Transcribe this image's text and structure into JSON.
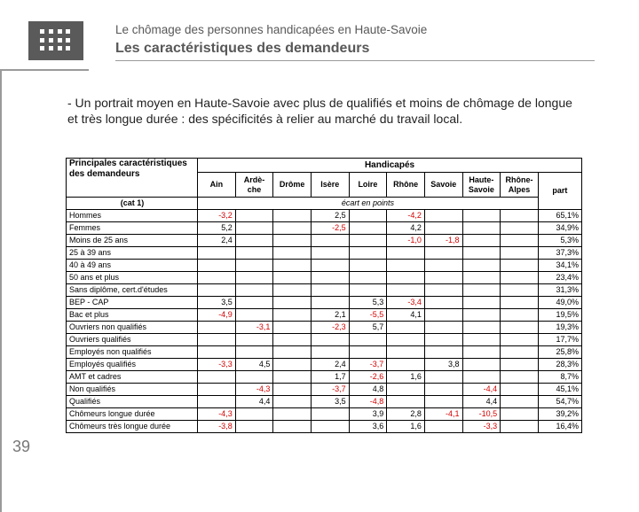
{
  "header": {
    "eyebrow": "Le chômage des personnes handicapées en Haute-Savoie",
    "title": "Les caractéristiques des demandeurs"
  },
  "page_number": "39",
  "body": "- Un portrait moyen en Haute-Savoie avec plus de qualifiés et moins de chômage de longue et très longue durée : des spécificités à relier au marché du travail local.",
  "table": {
    "super_header": "Handicapés",
    "left_header_l1": "Principales caractéristiques",
    "left_header_l2": "des demandeurs",
    "cols": [
      "Ain",
      "Ardè-\nche",
      "Drôme",
      "Isère",
      "Loire",
      "Rhône",
      "Savoie",
      "Haute-\nSavoie",
      "Rhône-\nAlpes"
    ],
    "cat_label": "(cat 1)",
    "ecarts_label": "écart en points",
    "part_label": "part",
    "rows": [
      {
        "label": "Hommes",
        "v": [
          "-3,2",
          "",
          "",
          "2,5",
          "",
          "-4,2",
          "",
          "",
          ""
        ],
        "red": [
          1,
          0,
          0,
          0,
          0,
          1,
          0,
          0,
          0
        ],
        "part": "65,1%"
      },
      {
        "label": "Femmes",
        "v": [
          "5,2",
          "",
          "",
          "-2,5",
          "",
          "4,2",
          "",
          "",
          ""
        ],
        "red": [
          0,
          0,
          0,
          1,
          0,
          0,
          0,
          0,
          0
        ],
        "part": "34,9%"
      },
      {
        "label": "Moins de 25 ans",
        "v": [
          "2,4",
          "",
          "",
          "",
          "",
          "-1,0",
          "-1,8",
          "",
          ""
        ],
        "red": [
          0,
          0,
          0,
          0,
          0,
          1,
          1,
          0,
          0
        ],
        "part": "5,3%",
        "sep": true
      },
      {
        "label": "25 à 39 ans",
        "v": [
          "",
          "",
          "",
          "",
          "",
          "",
          "",
          "",
          ""
        ],
        "red": [
          0,
          0,
          0,
          0,
          0,
          0,
          0,
          0,
          0
        ],
        "part": "37,3%"
      },
      {
        "label": "40 à 49 ans",
        "v": [
          "",
          "",
          "",
          "",
          "",
          "",
          "",
          "",
          ""
        ],
        "red": [
          0,
          0,
          0,
          0,
          0,
          0,
          0,
          0,
          0
        ],
        "part": "34,1%"
      },
      {
        "label": "50 ans et plus",
        "v": [
          "",
          "",
          "",
          "",
          "",
          "",
          "",
          "",
          ""
        ],
        "red": [
          0,
          0,
          0,
          0,
          0,
          0,
          0,
          0,
          0
        ],
        "part": "23,4%"
      },
      {
        "label": "Sans diplôme, cert.d'études",
        "v": [
          "",
          "",
          "",
          "",
          "",
          "",
          "",
          "",
          ""
        ],
        "red": [
          0,
          0,
          0,
          0,
          0,
          0,
          0,
          0,
          0
        ],
        "part": "31,3%",
        "sep": true
      },
      {
        "label": "BEP - CAP",
        "v": [
          "3,5",
          "",
          "",
          "",
          "5,3",
          "-3,4",
          "",
          "",
          ""
        ],
        "red": [
          0,
          0,
          0,
          0,
          0,
          1,
          0,
          0,
          0
        ],
        "part": "49,0%"
      },
      {
        "label": "Bac et plus",
        "v": [
          "-4,9",
          "",
          "",
          "2,1",
          "-5,5",
          "4,1",
          "",
          "",
          ""
        ],
        "red": [
          1,
          0,
          0,
          0,
          1,
          0,
          0,
          0,
          0
        ],
        "part": "19,5%"
      },
      {
        "label": "Ouvriers non qualifiés",
        "v": [
          "",
          "-3,1",
          "",
          "-2,3",
          "5,7",
          "",
          "",
          "",
          ""
        ],
        "red": [
          0,
          1,
          0,
          1,
          0,
          0,
          0,
          0,
          0
        ],
        "part": "19,3%",
        "sep": true
      },
      {
        "label": "Ouvriers qualifiés",
        "v": [
          "",
          "",
          "",
          "",
          "",
          "",
          "",
          "",
          ""
        ],
        "red": [
          0,
          0,
          0,
          0,
          0,
          0,
          0,
          0,
          0
        ],
        "part": "17,7%"
      },
      {
        "label": "Employés non qualifiés",
        "v": [
          "",
          "",
          "",
          "",
          "",
          "",
          "",
          "",
          ""
        ],
        "red": [
          0,
          0,
          0,
          0,
          0,
          0,
          0,
          0,
          0
        ],
        "part": "25,8%"
      },
      {
        "label": "Employés qualifiés",
        "v": [
          "-3,3",
          "4,5",
          "",
          "2,4",
          "-3,7",
          "",
          "3,8",
          "",
          ""
        ],
        "red": [
          1,
          0,
          0,
          0,
          1,
          0,
          0,
          0,
          0
        ],
        "part": "28,3%"
      },
      {
        "label": "AMT et cadres",
        "v": [
          "",
          "",
          "",
          "1,7",
          "-2,6",
          "1,6",
          "",
          "",
          ""
        ],
        "red": [
          0,
          0,
          0,
          0,
          1,
          0,
          0,
          0,
          0
        ],
        "part": "8,7%"
      },
      {
        "label": "Non qualifiés",
        "v": [
          "",
          "-4,3",
          "",
          "-3,7",
          "4,8",
          "",
          "",
          "-4,4",
          ""
        ],
        "red": [
          0,
          1,
          0,
          1,
          0,
          0,
          0,
          1,
          0
        ],
        "part": "45,1%",
        "sep": true
      },
      {
        "label": "Qualifiés",
        "v": [
          "",
          "4,4",
          "",
          "3,5",
          "-4,8",
          "",
          "",
          "4,4",
          ""
        ],
        "red": [
          0,
          0,
          0,
          0,
          1,
          0,
          0,
          0,
          0
        ],
        "part": "54,7%"
      },
      {
        "label": "Chômeurs longue durée",
        "v": [
          "-4,3",
          "",
          "",
          "",
          "3,9",
          "2,8",
          "-4,1",
          "-10,5",
          ""
        ],
        "red": [
          1,
          0,
          0,
          0,
          0,
          0,
          1,
          1,
          0
        ],
        "part": "39,2%",
        "sep": true
      },
      {
        "label": "Chômeurs très longue durée",
        "v": [
          "-3,8",
          "",
          "",
          "",
          "3,6",
          "1,6",
          "",
          "-3,3",
          ""
        ],
        "red": [
          1,
          0,
          0,
          0,
          0,
          0,
          0,
          1,
          0
        ],
        "part": "16,4%"
      }
    ]
  }
}
